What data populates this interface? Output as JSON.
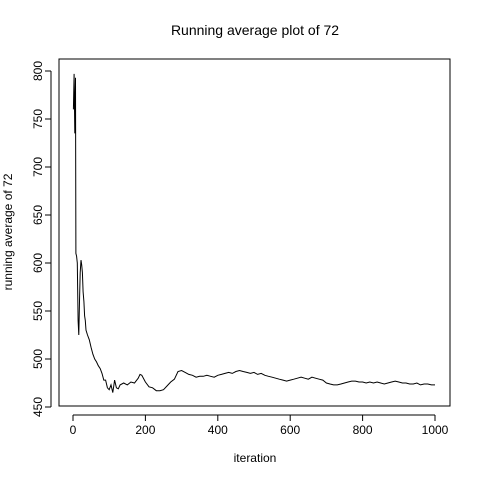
{
  "chart_data": {
    "type": "line",
    "title": "Running average plot of 72",
    "xlabel": "iteration",
    "ylabel": "running average of 72",
    "xlim": [
      0,
      1000
    ],
    "ylim": [
      450,
      810
    ],
    "x_ticks": [
      0,
      200,
      400,
      600,
      800,
      1000
    ],
    "y_ticks": [
      450,
      500,
      550,
      600,
      650,
      700,
      750,
      800
    ],
    "grid": false,
    "series": [
      {
        "points": [
          [
            1,
            760
          ],
          [
            3,
            797
          ],
          [
            5,
            735
          ],
          [
            7,
            793
          ],
          [
            8,
            610
          ],
          [
            10,
            607
          ],
          [
            12,
            600
          ],
          [
            14,
            540
          ],
          [
            16,
            525
          ],
          [
            18,
            560
          ],
          [
            20,
            590
          ],
          [
            22,
            603
          ],
          [
            24,
            598
          ],
          [
            26,
            590
          ],
          [
            28,
            570
          ],
          [
            30,
            560
          ],
          [
            32,
            545
          ],
          [
            34,
            540
          ],
          [
            36,
            530
          ],
          [
            40,
            525
          ],
          [
            45,
            520
          ],
          [
            50,
            512
          ],
          [
            55,
            505
          ],
          [
            60,
            500
          ],
          [
            65,
            497
          ],
          [
            70,
            493
          ],
          [
            75,
            490
          ],
          [
            80,
            485
          ],
          [
            85,
            478
          ],
          [
            90,
            478
          ],
          [
            95,
            470
          ],
          [
            100,
            468
          ],
          [
            105,
            473
          ],
          [
            110,
            465
          ],
          [
            115,
            478
          ],
          [
            120,
            470
          ],
          [
            125,
            469
          ],
          [
            130,
            473
          ],
          [
            140,
            475
          ],
          [
            150,
            473
          ],
          [
            160,
            476
          ],
          [
            170,
            475
          ],
          [
            180,
            480
          ],
          [
            185,
            484
          ],
          [
            190,
            483
          ],
          [
            200,
            476
          ],
          [
            210,
            471
          ],
          [
            220,
            470
          ],
          [
            230,
            467
          ],
          [
            240,
            467
          ],
          [
            250,
            468
          ],
          [
            260,
            472
          ],
          [
            270,
            476
          ],
          [
            280,
            479
          ],
          [
            290,
            487
          ],
          [
            300,
            488
          ],
          [
            310,
            486
          ],
          [
            320,
            484
          ],
          [
            330,
            483
          ],
          [
            340,
            481
          ],
          [
            350,
            482
          ],
          [
            360,
            482
          ],
          [
            370,
            483
          ],
          [
            380,
            482
          ],
          [
            390,
            481
          ],
          [
            400,
            483
          ],
          [
            410,
            484
          ],
          [
            420,
            485
          ],
          [
            430,
            486
          ],
          [
            440,
            485
          ],
          [
            450,
            487
          ],
          [
            460,
            488
          ],
          [
            470,
            487
          ],
          [
            480,
            486
          ],
          [
            490,
            485
          ],
          [
            500,
            486
          ],
          [
            510,
            484
          ],
          [
            520,
            485
          ],
          [
            530,
            483
          ],
          [
            540,
            482
          ],
          [
            550,
            481
          ],
          [
            560,
            480
          ],
          [
            570,
            479
          ],
          [
            580,
            478
          ],
          [
            590,
            477
          ],
          [
            600,
            478
          ],
          [
            610,
            479
          ],
          [
            620,
            480
          ],
          [
            630,
            481
          ],
          [
            640,
            480
          ],
          [
            650,
            479
          ],
          [
            660,
            481
          ],
          [
            670,
            480
          ],
          [
            680,
            479
          ],
          [
            690,
            478
          ],
          [
            700,
            475
          ],
          [
            710,
            474
          ],
          [
            720,
            473
          ],
          [
            730,
            473
          ],
          [
            740,
            474
          ],
          [
            750,
            475
          ],
          [
            760,
            476
          ],
          [
            770,
            477
          ],
          [
            780,
            477
          ],
          [
            790,
            476
          ],
          [
            800,
            476
          ],
          [
            810,
            475
          ],
          [
            820,
            476
          ],
          [
            830,
            475
          ],
          [
            840,
            476
          ],
          [
            850,
            475
          ],
          [
            860,
            474
          ],
          [
            870,
            475
          ],
          [
            880,
            476
          ],
          [
            890,
            477
          ],
          [
            900,
            476
          ],
          [
            910,
            475
          ],
          [
            920,
            475
          ],
          [
            930,
            474
          ],
          [
            940,
            474
          ],
          [
            950,
            475
          ],
          [
            960,
            473
          ],
          [
            970,
            474
          ],
          [
            980,
            474
          ],
          [
            990,
            473
          ],
          [
            1000,
            473
          ]
        ]
      }
    ]
  }
}
